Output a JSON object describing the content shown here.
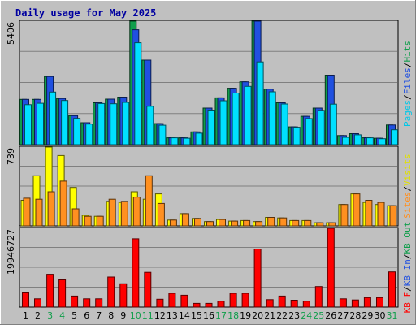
{
  "chart_data": {
    "type": "bar",
    "title": "Daily usage for May 2025",
    "x": [
      "1",
      "2",
      "3",
      "4",
      "5",
      "6",
      "7",
      "8",
      "9",
      "10",
      "11",
      "12",
      "13",
      "14",
      "15",
      "16",
      "17",
      "18",
      "19",
      "20",
      "21",
      "22",
      "23",
      "24",
      "25",
      "26",
      "27",
      "28",
      "29",
      "30",
      "31"
    ],
    "weekend_days": [
      "3",
      "4",
      "10",
      "11",
      "17",
      "18",
      "24",
      "25",
      "31"
    ],
    "panels": [
      {
        "name": "top",
        "ymax_label": "5406",
        "ylim": [
          0,
          5406
        ],
        "grid": true,
        "series": [
          {
            "name": "Hits",
            "color": "#109e4b",
            "values": [
              1980,
              1980,
              2980,
              2020,
              1270,
              960,
              1830,
              1990,
              2080,
              5406,
              3700,
              920,
              300,
              300,
              560,
              1600,
              2050,
              2470,
              2750,
              5406,
              2430,
              1830,
              780,
              1240,
              1600,
              3040,
              400,
              480,
              300,
              280,
              860
            ]
          },
          {
            "name": "Files",
            "color": "#2050e0",
            "values": [
              1980,
              1980,
              2980,
              2020,
              1270,
              960,
              1830,
              1990,
              2080,
              5030,
              3700,
              920,
              300,
              300,
              560,
              1600,
              2050,
              2470,
              2750,
              5406,
              2430,
              1830,
              780,
              1240,
              1600,
              3040,
              400,
              480,
              300,
              280,
              860
            ]
          },
          {
            "name": "Pages",
            "color": "#00e0ff",
            "values": [
              1750,
              1810,
              2300,
              1930,
              1150,
              900,
              1800,
              1790,
              1850,
              4460,
              1680,
              850,
              300,
              280,
              500,
              1510,
              1920,
              2260,
              2550,
              3620,
              2310,
              1780,
              760,
              1140,
              1500,
              1770,
              320,
              430,
              300,
              260,
              650
            ]
          }
        ],
        "right_labels": [
          {
            "text": "Pages",
            "color": "#00c8e8"
          },
          {
            "text": "/",
            "color": "#000000"
          },
          {
            "text": "Files",
            "color": "#2050e0"
          },
          {
            "text": "/",
            "color": "#000000"
          },
          {
            "text": "Hits",
            "color": "#109e4b"
          }
        ]
      },
      {
        "name": "middle",
        "ymax_label": "739",
        "ylim": [
          0,
          739
        ],
        "grid": true,
        "series": [
          {
            "name": "Visits",
            "color": "#ffff00",
            "values": [
              240,
              470,
              739,
              660,
              360,
              100,
              90,
              230,
              220,
              320,
              250,
              300,
              55,
              115,
              70,
              40,
              60,
              45,
              50,
              40,
              80,
              75,
              50,
              50,
              30,
              30,
              200,
              300,
              220,
              200,
              190
            ]
          },
          {
            "name": "Sites",
            "color": "#ff9020",
            "values": [
              260,
              250,
              320,
              420,
              160,
              90,
              90,
              250,
              230,
              270,
              470,
              210,
              55,
              115,
              70,
              40,
              60,
              45,
              50,
              40,
              80,
              75,
              50,
              50,
              30,
              30,
              200,
              300,
              240,
              220,
              190
            ]
          }
        ],
        "right_labels": [
          {
            "text": "Sites",
            "color": "#ff9020"
          },
          {
            "text": "/",
            "color": "#000000"
          },
          {
            "text": "Visits",
            "color": "#e0e000"
          }
        ]
      },
      {
        "name": "bottom",
        "ymax_label": "19946727",
        "ylim": [
          0,
          19946727
        ],
        "grid": true,
        "series": [
          {
            "name": "KB F",
            "color": "#ff0000",
            "values": [
              3800000,
              2100000,
              8300000,
              7100000,
              2800000,
              2100000,
              2100000,
              7600000,
              5900000,
              17300000,
              8800000,
              2000000,
              3500000,
              3000000,
              950000,
              950000,
              1500000,
              3500000,
              3500000,
              14700000,
              1900000,
              2800000,
              1750000,
              1500000,
              5200000,
              19946727,
              2100000,
              1800000,
              2400000,
              2400000,
              8900000
            ]
          }
        ],
        "right_labels": [
          {
            "text": "KB F",
            "color": "#ff0000"
          },
          {
            "text": "/",
            "color": "#000000"
          },
          {
            "text": "KB In",
            "color": "#2050e0"
          },
          {
            "text": "/",
            "color": "#000000"
          },
          {
            "text": "KB Out",
            "color": "#109e4b"
          }
        ]
      }
    ]
  }
}
